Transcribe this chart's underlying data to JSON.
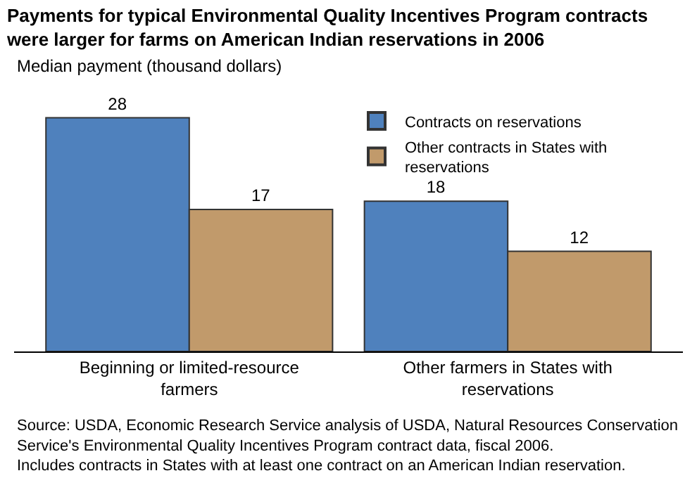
{
  "chart_data": {
    "type": "bar",
    "title": "Payments for typical Environmental Quality Incentives Program contracts were larger for farms on American Indian reservations in 2006",
    "subtitle": "Median payment (thousand dollars)",
    "categories": [
      "Beginning or limited-resource farmers",
      "Other farmers in States with reservations"
    ],
    "series": [
      {
        "name": "Contracts on reservations",
        "color": "#4f81bd",
        "values": [
          28,
          18
        ]
      },
      {
        "name": "Other contracts in States with reservations",
        "color": "#c19a6b",
        "values": [
          17,
          12
        ]
      }
    ],
    "tick_labels": "x",
    "data_labels": true,
    "legend": "top right",
    "grid": false,
    "annotations": [
      "Source: USDA, Economic Research Service analysis of USDA, Natural Resources Conservation Service's Environmental Quality Incentives Program contract data, fiscal 2006.",
      "Includes contracts in States with at least one contract on an American Indian reservation."
    ]
  }
}
